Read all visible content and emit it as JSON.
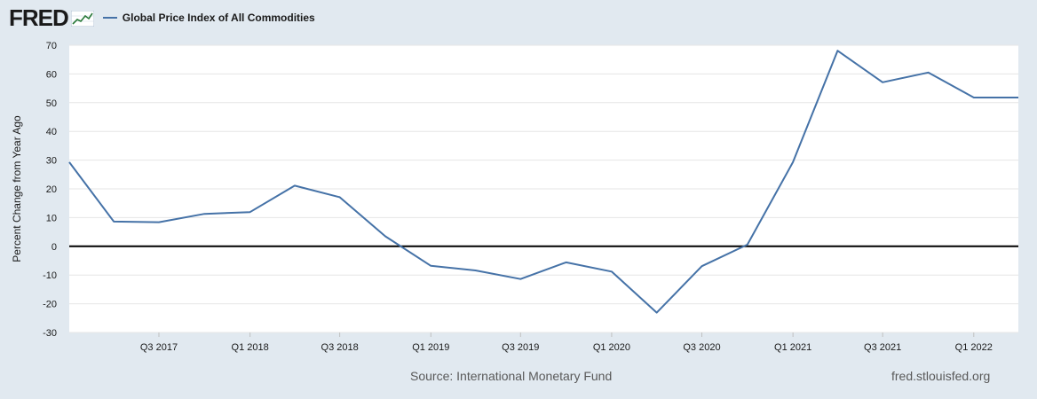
{
  "header": {
    "logo_text": "FRED",
    "logo_icon": "fred-line-graph-icon",
    "series_title": "Global Price Index of All Commodities",
    "series_color": "#4572a7"
  },
  "footer": {
    "source": "Source: International Monetary Fund",
    "url": "fred.stlouisfed.org"
  },
  "colors": {
    "background": "#e1e9f0",
    "plot_background": "#ffffff",
    "grid": "#e6e6e6",
    "zero_line": "#000000",
    "series": "#4572a7"
  },
  "chart_data": {
    "type": "line",
    "title": "",
    "xlabel": "",
    "ylabel": "Percent Change from Year Ago",
    "ylim": [
      -30,
      70
    ],
    "yticks": [
      70,
      60,
      50,
      40,
      30,
      20,
      10,
      0,
      -10,
      -20,
      -30
    ],
    "xlim": [
      "2017-01-01",
      "2022-04-01"
    ],
    "xticks": [
      {
        "label": "Q3 2017",
        "date": "2017-07-01"
      },
      {
        "label": "Q1 2018",
        "date": "2018-01-01"
      },
      {
        "label": "Q3 2018",
        "date": "2018-07-01"
      },
      {
        "label": "Q1 2019",
        "date": "2019-01-01"
      },
      {
        "label": "Q3 2019",
        "date": "2019-07-01"
      },
      {
        "label": "Q1 2020",
        "date": "2020-01-01"
      },
      {
        "label": "Q3 2020",
        "date": "2020-07-01"
      },
      {
        "label": "Q1 2021",
        "date": "2021-01-01"
      },
      {
        "label": "Q3 2021",
        "date": "2021-07-01"
      },
      {
        "label": "Q1 2022",
        "date": "2022-01-01"
      }
    ],
    "grid": true,
    "legend": "top-left",
    "series": [
      {
        "name": "Global Price Index of All Commodities",
        "x": [
          "2017-01-01",
          "2017-04-01",
          "2017-07-01",
          "2017-10-01",
          "2018-01-01",
          "2018-04-01",
          "2018-07-01",
          "2018-10-01",
          "2019-01-01",
          "2019-04-01",
          "2019-07-01",
          "2019-10-01",
          "2020-01-01",
          "2020-04-01",
          "2020-07-01",
          "2020-10-01",
          "2021-01-01",
          "2021-04-01",
          "2021-07-01",
          "2021-10-01",
          "2022-01-01",
          "2022-04-01"
        ],
        "values": [
          29.3,
          8.6,
          8.4,
          11.3,
          11.9,
          21.1,
          17.1,
          3.5,
          -6.8,
          -8.4,
          -11.4,
          -5.6,
          -8.8,
          -23.1,
          -6.9,
          0.6,
          29.3,
          68.1,
          57.1,
          60.5,
          51.8,
          51.8
        ]
      }
    ]
  }
}
